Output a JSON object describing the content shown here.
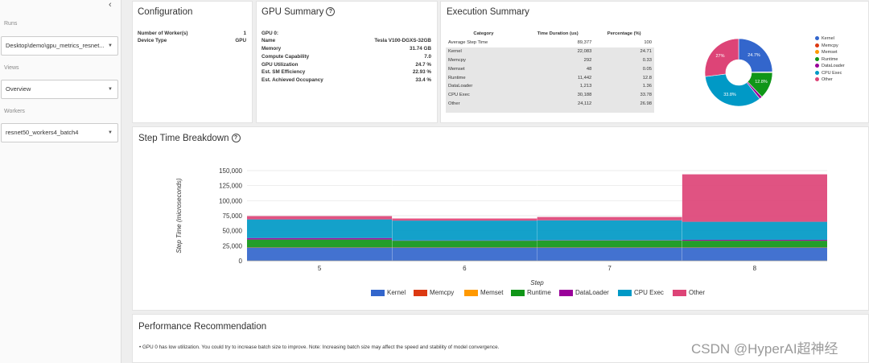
{
  "sidebar": {
    "runs_label": "Runs",
    "runs_value": "Desktop\\demo\\gpu_metrics_resnet...",
    "views_label": "Views",
    "views_value": "Overview",
    "workers_label": "Workers",
    "workers_value": "resnet50_workers4_batch4"
  },
  "configuration": {
    "title": "Configuration",
    "rows": [
      {
        "key": "Number of Worker(s)",
        "value": "1"
      },
      {
        "key": "Device Type",
        "value": "GPU"
      }
    ]
  },
  "gpu_summary": {
    "title": "GPU Summary",
    "gpu_label": "GPU 0:",
    "rows": [
      {
        "key": "Name",
        "value": "Tesla V100-DGXS-32GB"
      },
      {
        "key": "Memory",
        "value": "31.74 GB"
      },
      {
        "key": "Compute Capability",
        "value": "7.0"
      },
      {
        "key": "GPU Utilization",
        "value": "24.7 %"
      },
      {
        "key": "Est. SM Efficiency",
        "value": "22.93 %"
      },
      {
        "key": "Est. Achieved Occupancy",
        "value": "33.4 %"
      }
    ]
  },
  "execution_summary": {
    "title": "Execution Summary",
    "headers": [
      "Category",
      "Time Duration (us)",
      "Percentage (%)"
    ],
    "rows": [
      [
        "Average Step Time",
        "89,377",
        "100"
      ],
      [
        "Kernel",
        "22,083",
        "24.71"
      ],
      [
        "Memcpy",
        "292",
        "0.33"
      ],
      [
        "Memset",
        "48",
        "0.05"
      ],
      [
        "Runtime",
        "11,442",
        "12.8"
      ],
      [
        "DataLoader",
        "1,213",
        "1.36"
      ],
      [
        "CPU Exec",
        "30,188",
        "33.78"
      ],
      [
        "Other",
        "24,112",
        "26.98"
      ]
    ],
    "pie_labels": [
      "24.7%",
      "12.8%",
      "33.8%",
      "27%"
    ]
  },
  "step_breakdown": {
    "title": "Step Time Breakdown"
  },
  "recommendation": {
    "title": "Performance Recommendation",
    "text": "GPU 0 has low utilization. You could try to increase batch size to improve. Note: Increasing batch size may affect the speed and stability of model convergence."
  },
  "watermark": "CSDN @HyperAI超神经",
  "colors": {
    "Kernel": "#3366cc",
    "Memcpy": "#dc3912",
    "Memset": "#ff9900",
    "Runtime": "#109618",
    "DataLoader": "#990099",
    "CPU Exec": "#0099c6",
    "Other": "#dd4477"
  },
  "chart_data": [
    {
      "type": "pie",
      "title": "Execution Summary",
      "legend": [
        "Kernel",
        "Memcpy",
        "Memset",
        "Runtime",
        "DataLoader",
        "CPU Exec",
        "Other"
      ],
      "values": [
        24.71,
        0.33,
        0.05,
        12.8,
        1.36,
        33.78,
        26.98
      ],
      "donut": true
    },
    {
      "type": "area",
      "title": "Step Time Breakdown",
      "xlabel": "Step",
      "ylabel": "Step Time (microseconds)",
      "categories": [
        "5",
        "6",
        "7",
        "8"
      ],
      "ylim": [
        0,
        150000
      ],
      "yticks": [
        0,
        25000,
        50000,
        75000,
        100000,
        125000,
        150000
      ],
      "ytick_labels": [
        "0",
        "25,000",
        "50,000",
        "75,000",
        "100,000",
        "125,000",
        "150,000"
      ],
      "series": [
        {
          "name": "Kernel",
          "values": [
            22000,
            22000,
            22000,
            22000
          ]
        },
        {
          "name": "Memcpy",
          "values": [
            300,
            300,
            300,
            300
          ]
        },
        {
          "name": "Memset",
          "values": [
            50,
            50,
            50,
            50
          ]
        },
        {
          "name": "Runtime",
          "values": [
            13000,
            11000,
            11500,
            11000
          ]
        },
        {
          "name": "DataLoader",
          "values": [
            2500,
            500,
            500,
            1500
          ]
        },
        {
          "name": "CPU Exec",
          "values": [
            31000,
            33000,
            33000,
            30000
          ]
        },
        {
          "name": "Other",
          "values": [
            5500,
            3500,
            5500,
            79000
          ]
        }
      ]
    }
  ]
}
